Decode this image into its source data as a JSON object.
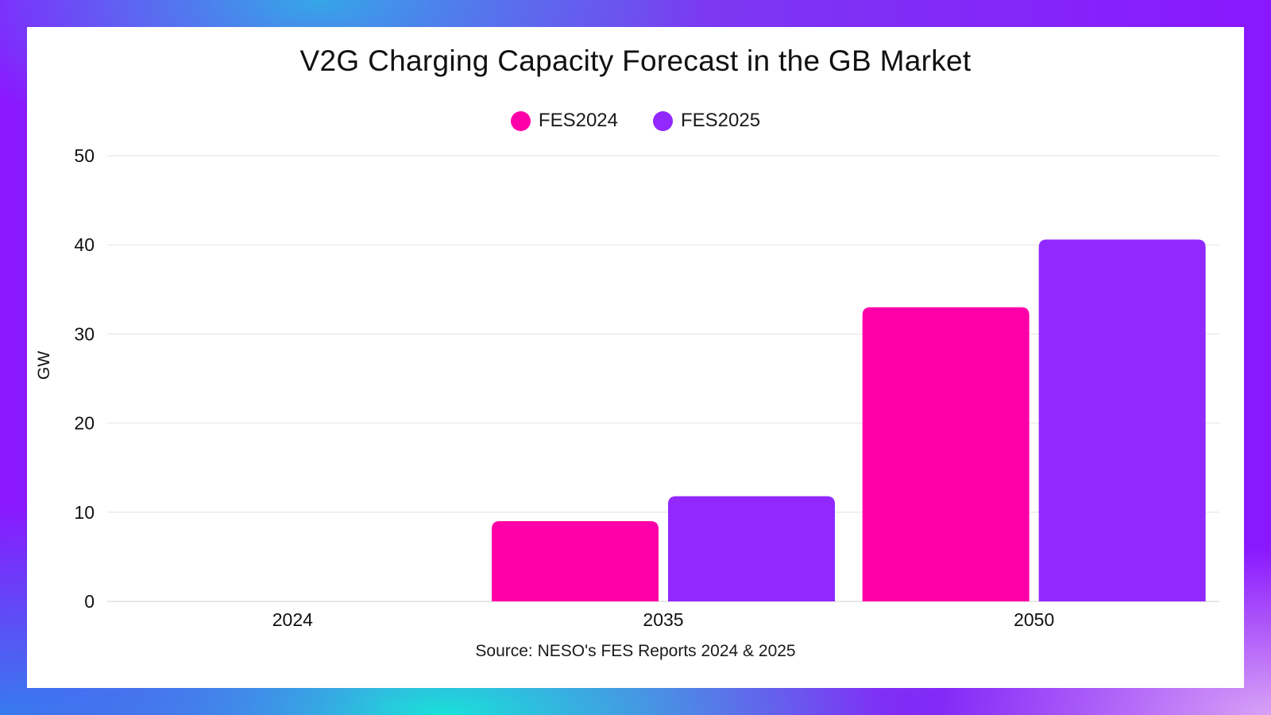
{
  "chart_data": {
    "type": "bar",
    "title": "V2G Charging Capacity Forecast in the GB Market",
    "xlabel": "",
    "ylabel": "GW",
    "categories": [
      "2024",
      "2035",
      "2050"
    ],
    "series": [
      {
        "name": "FES2024",
        "color": "#ff00a8",
        "values": [
          0,
          9,
          33
        ]
      },
      {
        "name": "FES2025",
        "color": "#9129ff",
        "values": [
          0,
          11.8,
          40.6
        ]
      }
    ],
    "ylim": [
      0,
      50
    ],
    "yticks": [
      "0",
      "10",
      "20",
      "30",
      "40",
      "50"
    ],
    "grid": true,
    "legend": "top-center",
    "source": "Source: NESO's FES Reports 2024 & 2025"
  }
}
